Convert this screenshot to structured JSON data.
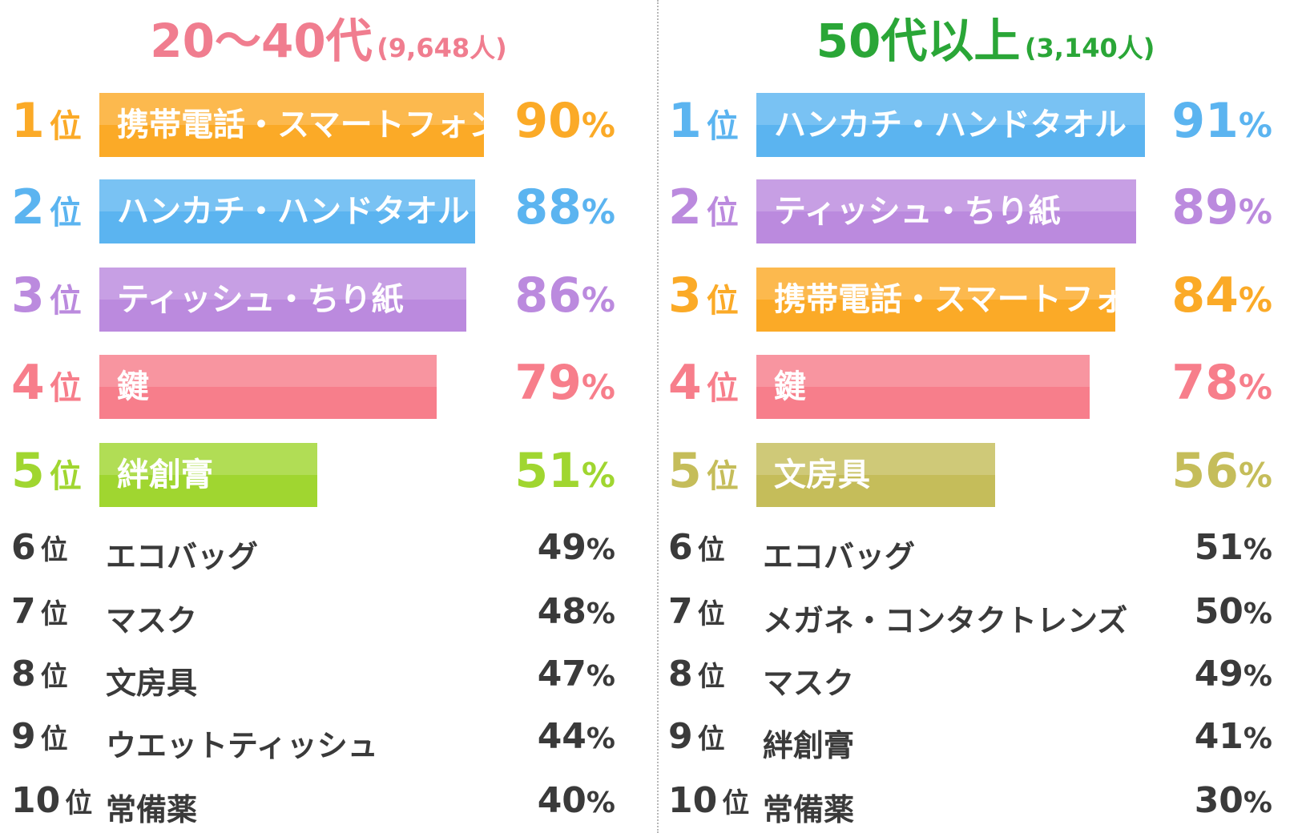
{
  "chart_data": [
    {
      "type": "bar",
      "title": "20〜40代",
      "subtitle": "(9,648人)",
      "title_color": "#f07d8f",
      "rank_suffix": "位",
      "percent_symbol": "%",
      "xlim": [
        0,
        100
      ],
      "items": [
        {
          "rank": "1",
          "label": "携帯電話・スマートフォン",
          "value": 90,
          "color": "#fbaa27"
        },
        {
          "rank": "2",
          "label": "ハンカチ・ハンドタオル",
          "value": 88,
          "color": "#5bb4f0"
        },
        {
          "rank": "3",
          "label": "ティッシュ・ちり紙",
          "value": 86,
          "color": "#bb8ade"
        },
        {
          "rank": "4",
          "label": "鍵",
          "value": 79,
          "color": "#f77e8b"
        },
        {
          "rank": "5",
          "label": "絆創膏",
          "value": 51,
          "color": "#a0d630"
        },
        {
          "rank": "6",
          "label": "エコバッグ",
          "value": 49,
          "color": "#3a3a3a"
        },
        {
          "rank": "7",
          "label": "マスク",
          "value": 48,
          "color": "#3a3a3a"
        },
        {
          "rank": "8",
          "label": "文房具",
          "value": 47,
          "color": "#3a3a3a"
        },
        {
          "rank": "9",
          "label": "ウエットティッシュ",
          "value": 44,
          "color": "#3a3a3a"
        },
        {
          "rank": "10",
          "label": "常備薬",
          "value": 40,
          "color": "#3a3a3a"
        }
      ]
    },
    {
      "type": "bar",
      "title": "50代以上",
      "subtitle": "(3,140人)",
      "title_color": "#2aa637",
      "rank_suffix": "位",
      "percent_symbol": "%",
      "xlim": [
        0,
        100
      ],
      "items": [
        {
          "rank": "1",
          "label": "ハンカチ・ハンドタオル",
          "value": 91,
          "color": "#5bb4f0"
        },
        {
          "rank": "2",
          "label": "ティッシュ・ちり紙",
          "value": 89,
          "color": "#bb8ade"
        },
        {
          "rank": "3",
          "label": "携帯電話・スマートフォン",
          "value": 84,
          "color": "#fbaa27"
        },
        {
          "rank": "4",
          "label": "鍵",
          "value": 78,
          "color": "#f77e8b"
        },
        {
          "rank": "5",
          "label": "文房具",
          "value": 56,
          "color": "#c5bd5a"
        },
        {
          "rank": "6",
          "label": "エコバッグ",
          "value": 51,
          "color": "#3a3a3a"
        },
        {
          "rank": "7",
          "label": "メガネ・コンタクトレンズ",
          "value": 50,
          "color": "#3a3a3a"
        },
        {
          "rank": "8",
          "label": "マスク",
          "value": 49,
          "color": "#3a3a3a"
        },
        {
          "rank": "9",
          "label": "絆創膏",
          "value": 41,
          "color": "#3a3a3a"
        },
        {
          "rank": "10",
          "label": "常備薬",
          "value": 30,
          "color": "#3a3a3a"
        }
      ]
    }
  ]
}
